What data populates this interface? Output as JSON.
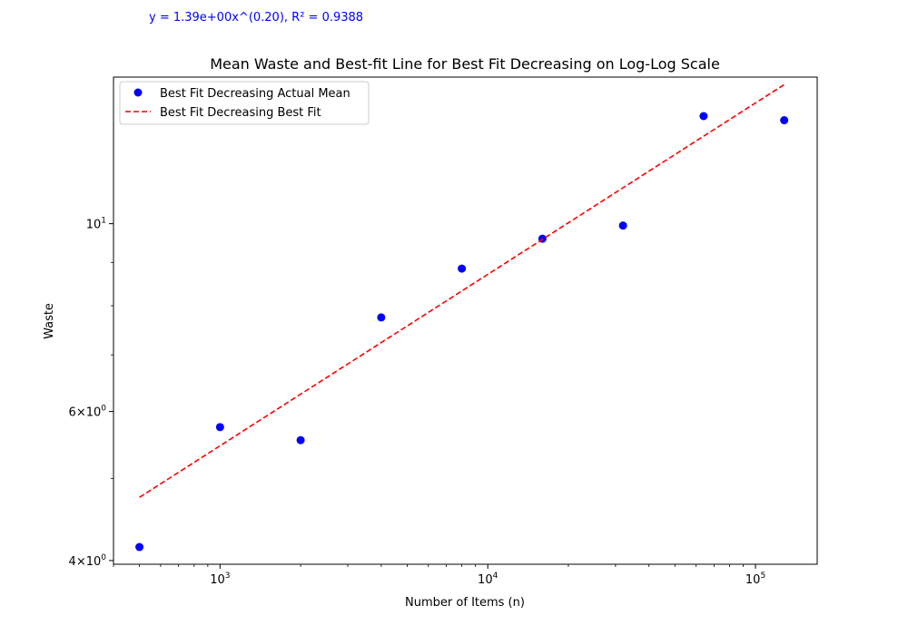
{
  "equation_text": "y = 1.39e+00x^(0.20), R² = 0.9388",
  "chart_data": {
    "type": "scatter",
    "title": "Mean Waste and Best-fit Line for Best Fit Decreasing on Log-Log Scale",
    "xlabel": "Number of Items (n)",
    "ylabel": "Waste",
    "xscale": "log",
    "yscale": "log",
    "xlim": [
      400,
      170000
    ],
    "ylim": [
      3.96,
      14.9
    ],
    "grid": false,
    "legend_position": "top-left",
    "x_ticks": [
      {
        "value": 1000,
        "base": "10",
        "exp": "3"
      },
      {
        "value": 10000,
        "base": "10",
        "exp": "4"
      },
      {
        "value": 100000,
        "base": "10",
        "exp": "5"
      }
    ],
    "y_ticks": [
      {
        "value": 4,
        "coef": "4",
        "base": "10",
        "exp": "0"
      },
      {
        "value": 6,
        "coef": "6",
        "base": "10",
        "exp": "0"
      },
      {
        "value": 10,
        "coef": "",
        "base": "10",
        "exp": "1"
      }
    ],
    "series": [
      {
        "name": "Best Fit Decreasing Actual Mean",
        "kind": "scatter",
        "color": "#0000ff",
        "x": [
          500,
          1000,
          2000,
          4000,
          8000,
          16000,
          32000,
          64000,
          128000
        ],
        "y": [
          4.15,
          5.75,
          5.55,
          7.75,
          8.85,
          9.6,
          9.95,
          13.4,
          13.25
        ]
      },
      {
        "name": "Best Fit Decreasing Best Fit",
        "kind": "line",
        "style": "dashed",
        "color": "#ff0000",
        "x": [
          500,
          128000
        ],
        "y": [
          4.75,
          14.6
        ]
      }
    ]
  }
}
